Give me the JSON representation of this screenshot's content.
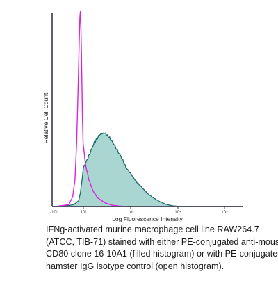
{
  "chart_data": {
    "type": "area",
    "xlabel": "Log Fluorescence Intensity",
    "ylabel": "Relative Cell Count",
    "x_scale": "log",
    "xlim": [
      -20,
      200000
    ],
    "ylim": [
      0,
      1.0
    ],
    "x_ticks": [
      {
        "value": -10,
        "label": "-10¹"
      },
      {
        "value": 100,
        "label": "10²"
      },
      {
        "value": 1000,
        "label": "10³"
      },
      {
        "value": 10000,
        "label": "10⁴"
      },
      {
        "value": 100000,
        "label": "10⁵"
      }
    ],
    "series": [
      {
        "name": "PE-conjugated anti-mouse CD80 clone 16-10A1",
        "style": "filled",
        "color": "#1b6b6b",
        "fill": "#a9d6d0",
        "points": [
          [
            0,
            0
          ],
          [
            5,
            0.004
          ],
          [
            20,
            0.01
          ],
          [
            45,
            0.03
          ],
          [
            60,
            0.07
          ],
          [
            80,
            0.14
          ],
          [
            100,
            0.2
          ],
          [
            130,
            0.26
          ],
          [
            170,
            0.33
          ],
          [
            220,
            0.37
          ],
          [
            280,
            0.38
          ],
          [
            340,
            0.36
          ],
          [
            420,
            0.33
          ],
          [
            520,
            0.29
          ],
          [
            650,
            0.25
          ],
          [
            800,
            0.2
          ],
          [
            1000,
            0.17
          ],
          [
            1300,
            0.13
          ],
          [
            1700,
            0.1
          ],
          [
            2200,
            0.07
          ],
          [
            3000,
            0.045
          ],
          [
            4000,
            0.027
          ],
          [
            5500,
            0.012
          ],
          [
            7500,
            0.004
          ],
          [
            10000,
            0.001
          ],
          [
            20000,
            0
          ]
        ]
      },
      {
        "name": "PE-conjugated hamster IgG isotype control",
        "style": "open",
        "color": "#e020e0",
        "points": [
          [
            0,
            0
          ],
          [
            8,
            0.01
          ],
          [
            16,
            0.05
          ],
          [
            24,
            0.14
          ],
          [
            32,
            0.33
          ],
          [
            40,
            0.58
          ],
          [
            48,
            0.82
          ],
          [
            55,
            0.97
          ],
          [
            60,
            1.0
          ],
          [
            66,
            0.94
          ],
          [
            72,
            0.79
          ],
          [
            78,
            0.62
          ],
          [
            85,
            0.46
          ],
          [
            95,
            0.33
          ],
          [
            110,
            0.22
          ],
          [
            130,
            0.14
          ],
          [
            160,
            0.08
          ],
          [
            200,
            0.045
          ],
          [
            280,
            0.02
          ],
          [
            400,
            0.007
          ],
          [
            600,
            0.002
          ],
          [
            1000,
            0
          ]
        ]
      }
    ]
  },
  "caption": {
    "lines": [
      "IFNg-activated murine macrophage cell line RAW264.7",
      "(ATCC, TIB-71) stained with either PE-conjugated anti-mouse",
      "CD80 clone 16-10A1 (filled histogram) or with PE-conjugated",
      "hamster IgG isotype control (open histogram)."
    ]
  }
}
